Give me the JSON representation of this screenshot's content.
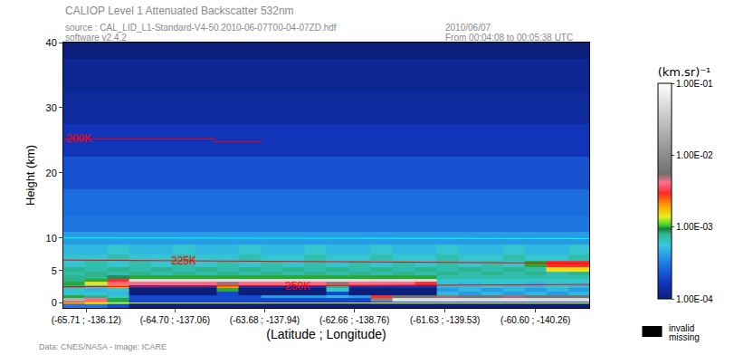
{
  "chart_data": {
    "type": "heatmap",
    "title": "CALIOP Level 1 Attenuated Backscatter 532nm",
    "subtitle": [
      "source : CAL_LID_L1-Standard-V4-50.2010-06-07T00-04-07ZD.hdf",
      "software v2.4.2"
    ],
    "date": [
      "2010/06/07",
      "From 00:04:08 to 00:05:38 UTC"
    ],
    "credit": "Data: CNES/NASA - Image: ICARE",
    "x_label": "(Latitude ; Longitude)",
    "y_label": "Height (km)",
    "xlim": [
      -65.97,
      -59.99
    ],
    "xticks": [
      {
        "value": -65.71,
        "label": "(-65.71 ; -136.12)"
      },
      {
        "value": -64.7,
        "label": "(-64.70 ; -137.06)"
      },
      {
        "value": -63.68,
        "label": "(-63.68 ; -137.94)"
      },
      {
        "value": -62.66,
        "label": "(-62.66 ; -138.76)"
      },
      {
        "value": -61.63,
        "label": "(-61.63 ; -139.53)"
      },
      {
        "value": -60.6,
        "label": "(-60.60 ; -140.26)"
      }
    ],
    "ylim": [
      -0.75,
      40
    ],
    "yticks": [
      0,
      5,
      10,
      20,
      30,
      40
    ],
    "colorbar": {
      "title": "(km.sr)⁻¹",
      "log": true,
      "range": [
        0.0001,
        0.1
      ],
      "ticks": [
        {
          "value": 0.1,
          "label": "1.00E-01"
        },
        {
          "value": 0.01,
          "label": "1.00E-02"
        },
        {
          "value": 0.001,
          "label": "1.00E-03"
        },
        {
          "value": 0.0001,
          "label": "1.00E-04"
        }
      ]
    },
    "missing_legend": [
      "invalid",
      "missing"
    ],
    "x": [
      -65.85,
      -65.6,
      -65.35,
      -65.1,
      -64.85,
      -64.6,
      -64.35,
      -64.1,
      -63.85,
      -63.6,
      -63.35,
      -63.1,
      -62.85,
      -62.6,
      -62.35,
      -62.1,
      -61.85,
      -61.6,
      -61.35,
      -61.1,
      -60.85,
      -60.6,
      -60.35,
      -60.1
    ],
    "y": [
      -0.5,
      0,
      0.5,
      1,
      1.5,
      2,
      2.5,
      3,
      3.5,
      4,
      4.5,
      5,
      6,
      7,
      8,
      10,
      12,
      15,
      20,
      25,
      30,
      35,
      40
    ],
    "cells": [
      [
        0.0003,
        0.0003,
        0.0002,
        0.0001,
        0.0001,
        0.0001,
        0.0001,
        0.0001,
        0.0001,
        0.0001,
        0.0001,
        0.0001,
        0.0001,
        0.0001,
        0.0001,
        0.0001,
        0.0001,
        0.0001,
        0.0001,
        0.0001,
        0.0001,
        0.0001,
        0.0001,
        0.0001
      ],
      [
        0.003,
        0.002,
        0.0008,
        0.00015,
        0.00015,
        0.00015,
        0.00015,
        0.00015,
        0.00015,
        0.00015,
        0.00015,
        0.00015,
        0.00015,
        0.00015,
        0.0002,
        0.0002,
        0.0002,
        0.0002,
        0.0002,
        0.0002,
        0.0002,
        0.0002,
        0.0002,
        0.0002
      ],
      [
        0.02,
        0.004,
        0.001,
        0.0002,
        0.0002,
        0.0002,
        0.0002,
        0.0002,
        0.0002,
        0.0002,
        0.0002,
        0.0002,
        0.0002,
        0.0002,
        0.008,
        0.05,
        0.05,
        0.05,
        0.05,
        0.05,
        0.05,
        0.05,
        0.05,
        0.05
      ],
      [
        0.001,
        0.0008,
        0.0006,
        0.0002,
        0.0002,
        0.0002,
        0.0002,
        0.0002,
        0.0002,
        0.0004,
        0.0004,
        0.0004,
        0.0005,
        0.0004,
        0.003,
        0.006,
        0.006,
        0.005,
        0.006,
        0.006,
        0.005,
        0.006,
        0.006,
        0.006
      ],
      [
        0.0006,
        0.0006,
        0.0005,
        0.0001,
        0.0001,
        0.0001,
        0.0001,
        0.0002,
        0.0001,
        0.0001,
        0.0001,
        0.0001,
        0.0002,
        0.0001,
        0.0001,
        0.0001,
        0.0001,
        0.0005,
        0.0004,
        0.0005,
        0.0004,
        0.0005,
        0.0004,
        0.0005
      ],
      [
        0.0006,
        0.0005,
        0.0006,
        0.0001,
        0.0001,
        0.0001,
        0.0001,
        0.001,
        0.0001,
        0.0001,
        0.0001,
        0.0001,
        0.0006,
        0.0001,
        0.0001,
        0.0001,
        0.0001,
        0.0004,
        0.0005,
        0.0004,
        0.0005,
        0.0004,
        0.0005,
        0.0004
      ],
      [
        0.0008,
        0.0006,
        0.002,
        0.00015,
        0.00015,
        0.00015,
        0.00015,
        0.002,
        0.00015,
        0.00015,
        0.00015,
        0.00015,
        0.0008,
        0.00015,
        0.00015,
        0.00015,
        0.00015,
        0.0005,
        0.0005,
        0.0006,
        0.0005,
        0.0005,
        0.0006,
        0.0005
      ],
      [
        0.001,
        0.0015,
        0.004,
        0.004,
        0.004,
        0.004,
        0.004,
        0.005,
        0.004,
        0.004,
        0.004,
        0.004,
        0.005,
        0.004,
        0.004,
        0.004,
        0.003,
        0.0006,
        0.0005,
        0.0006,
        0.0006,
        0.0005,
        0.0006,
        0.0006
      ],
      [
        0.0008,
        0.001,
        0.003,
        0.05,
        0.05,
        0.05,
        0.05,
        0.05,
        0.05,
        0.05,
        0.05,
        0.05,
        0.05,
        0.05,
        0.05,
        0.05,
        0.05,
        0.0006,
        0.0006,
        0.0006,
        0.0006,
        0.0006,
        0.0006,
        0.0006
      ],
      [
        0.0008,
        0.0008,
        0.0009,
        0.001,
        0.001,
        0.001,
        0.001,
        0.001,
        0.001,
        0.001,
        0.001,
        0.001,
        0.001,
        0.001,
        0.001,
        0.001,
        0.001,
        0.0007,
        0.0007,
        0.0007,
        0.0007,
        0.0007,
        0.0007,
        0.0007
      ],
      [
        0.0007,
        0.0008,
        0.0007,
        0.0008,
        0.0007,
        0.0008,
        0.0007,
        0.0008,
        0.0007,
        0.0008,
        0.0007,
        0.0008,
        0.0007,
        0.0008,
        0.0007,
        0.0008,
        0.0007,
        0.0008,
        0.0007,
        0.0008,
        0.0007,
        0.0008,
        0.0007,
        0.0008
      ],
      [
        0.0008,
        0.0007,
        0.0008,
        0.0007,
        0.0008,
        0.0007,
        0.0008,
        0.0007,
        0.0008,
        0.0007,
        0.0008,
        0.0007,
        0.0008,
        0.0007,
        0.0008,
        0.0007,
        0.0008,
        0.0007,
        0.0008,
        0.0007,
        0.0008,
        0.0007,
        0.0015,
        0.0015
      ],
      [
        0.0006,
        0.0007,
        0.0006,
        0.0007,
        0.0006,
        0.0007,
        0.0006,
        0.0007,
        0.0006,
        0.0007,
        0.0006,
        0.0007,
        0.0006,
        0.0007,
        0.0006,
        0.0007,
        0.0006,
        0.0007,
        0.0006,
        0.0007,
        0.0006,
        0.001,
        0.003,
        0.003
      ],
      [
        0.0006,
        0.0006,
        0.0007,
        0.0006,
        0.0006,
        0.0007,
        0.0006,
        0.0006,
        0.0007,
        0.0006,
        0.0006,
        0.0007,
        0.0006,
        0.0006,
        0.0007,
        0.0006,
        0.0006,
        0.0007,
        0.0006,
        0.0006,
        0.0007,
        0.0006,
        0.0006,
        0.0007
      ],
      [
        0.0005,
        0.0005,
        0.0006,
        0.0005,
        0.0005,
        0.0006,
        0.0005,
        0.0005,
        0.0006,
        0.0005,
        0.0005,
        0.0006,
        0.0005,
        0.0005,
        0.0006,
        0.0005,
        0.0005,
        0.0006,
        0.0005,
        0.0005,
        0.0006,
        0.0005,
        0.0005,
        0.0006
      ],
      [
        0.0004,
        0.0004,
        0.0004,
        0.0004,
        0.0004,
        0.0004,
        0.0004,
        0.0004,
        0.0004,
        0.0004,
        0.0004,
        0.0004,
        0.0004,
        0.0004,
        0.0004,
        0.0004,
        0.0004,
        0.0004,
        0.0004,
        0.0004,
        0.0004,
        0.0004,
        0.0004,
        0.0004
      ],
      [
        0.0003,
        0.0003,
        0.0003,
        0.0003,
        0.0003,
        0.0003,
        0.0003,
        0.0003,
        0.0003,
        0.0003,
        0.0003,
        0.0003,
        0.0003,
        0.0003,
        0.0003,
        0.0003,
        0.0003,
        0.0003,
        0.0003,
        0.0003,
        0.0003,
        0.0003,
        0.0003,
        0.0003
      ],
      [
        0.00028,
        0.00028,
        0.00028,
        0.00028,
        0.00028,
        0.00028,
        0.00028,
        0.00028,
        0.00028,
        0.00028,
        0.00028,
        0.00028,
        0.00028,
        0.00028,
        0.00028,
        0.00028,
        0.00028,
        0.00028,
        0.00028,
        0.00028,
        0.00028,
        0.00028,
        0.00028,
        0.00028
      ],
      [
        0.00022,
        0.00022,
        0.00022,
        0.00022,
        0.00022,
        0.00022,
        0.00022,
        0.00022,
        0.00022,
        0.00022,
        0.00022,
        0.00022,
        0.00022,
        0.00022,
        0.00022,
        0.00022,
        0.00022,
        0.00022,
        0.00022,
        0.00022,
        0.00022,
        0.00022,
        0.00022,
        0.00022
      ],
      [
        0.00016,
        0.00016,
        0.00016,
        0.00016,
        0.00016,
        0.00016,
        0.00016,
        0.00016,
        0.00016,
        0.00016,
        0.00016,
        0.00016,
        0.00016,
        0.00016,
        0.00016,
        0.00016,
        0.00016,
        0.00016,
        0.00016,
        0.00016,
        0.00016,
        0.00016,
        0.00016,
        0.00016
      ],
      [
        0.00013,
        0.00013,
        0.00013,
        0.00013,
        0.00013,
        0.00013,
        0.00013,
        0.00013,
        0.00013,
        0.00013,
        0.00013,
        0.00013,
        0.00013,
        0.00013,
        0.00013,
        0.00013,
        0.00013,
        0.00013,
        0.00013,
        0.00013,
        0.00013,
        0.00013,
        0.00013,
        0.00013
      ],
      [
        0.00012,
        0.00012,
        0.00012,
        0.00012,
        0.00012,
        0.00012,
        0.00012,
        0.00012,
        0.00012,
        0.00012,
        0.00012,
        0.00012,
        0.00012,
        0.00012,
        0.00012,
        0.00012,
        0.00012,
        0.00012,
        0.00012,
        0.00012,
        0.00012,
        0.00012,
        0.00012,
        0.00012
      ],
      [
        0.0001,
        0.0001,
        0.0001,
        0.0001,
        0.0001,
        0.0001,
        0.0001,
        0.0001,
        0.0001,
        0.0001,
        0.0001,
        0.0001,
        0.0001,
        0.0001,
        0.0001,
        0.0001,
        0.0001,
        0.0001,
        0.0001,
        0.0001,
        0.0001,
        0.0001,
        0.0001,
        0.0001
      ]
    ],
    "lines": [
      {
        "label": "200K",
        "color": "red",
        "x": [
          -65.97,
          -64.25,
          -64.25,
          -63.71
        ],
        "y": [
          25.2,
          25.2,
          24.8,
          24.8
        ],
        "label_at": -65.8
      },
      {
        "label": "225K",
        "color": "red",
        "x": [
          -65.97,
          -59.99
        ],
        "y": [
          6.6,
          6.1
        ],
        "label_at": -64.6
      },
      {
        "label": "250K",
        "color": "red",
        "x": [
          -65.97,
          -59.99
        ],
        "y": [
          2.5,
          2.85
        ],
        "label_at": -63.3
      },
      {
        "color": "cyan",
        "x": [
          -65.97,
          -61.9,
          -61.9,
          -59.99
        ],
        "y": [
          10,
          10,
          9.9,
          9.9
        ]
      },
      {
        "color": "yellow",
        "x": [
          -65.97,
          -59.99
        ],
        "y": [
          0,
          0
        ]
      }
    ]
  }
}
